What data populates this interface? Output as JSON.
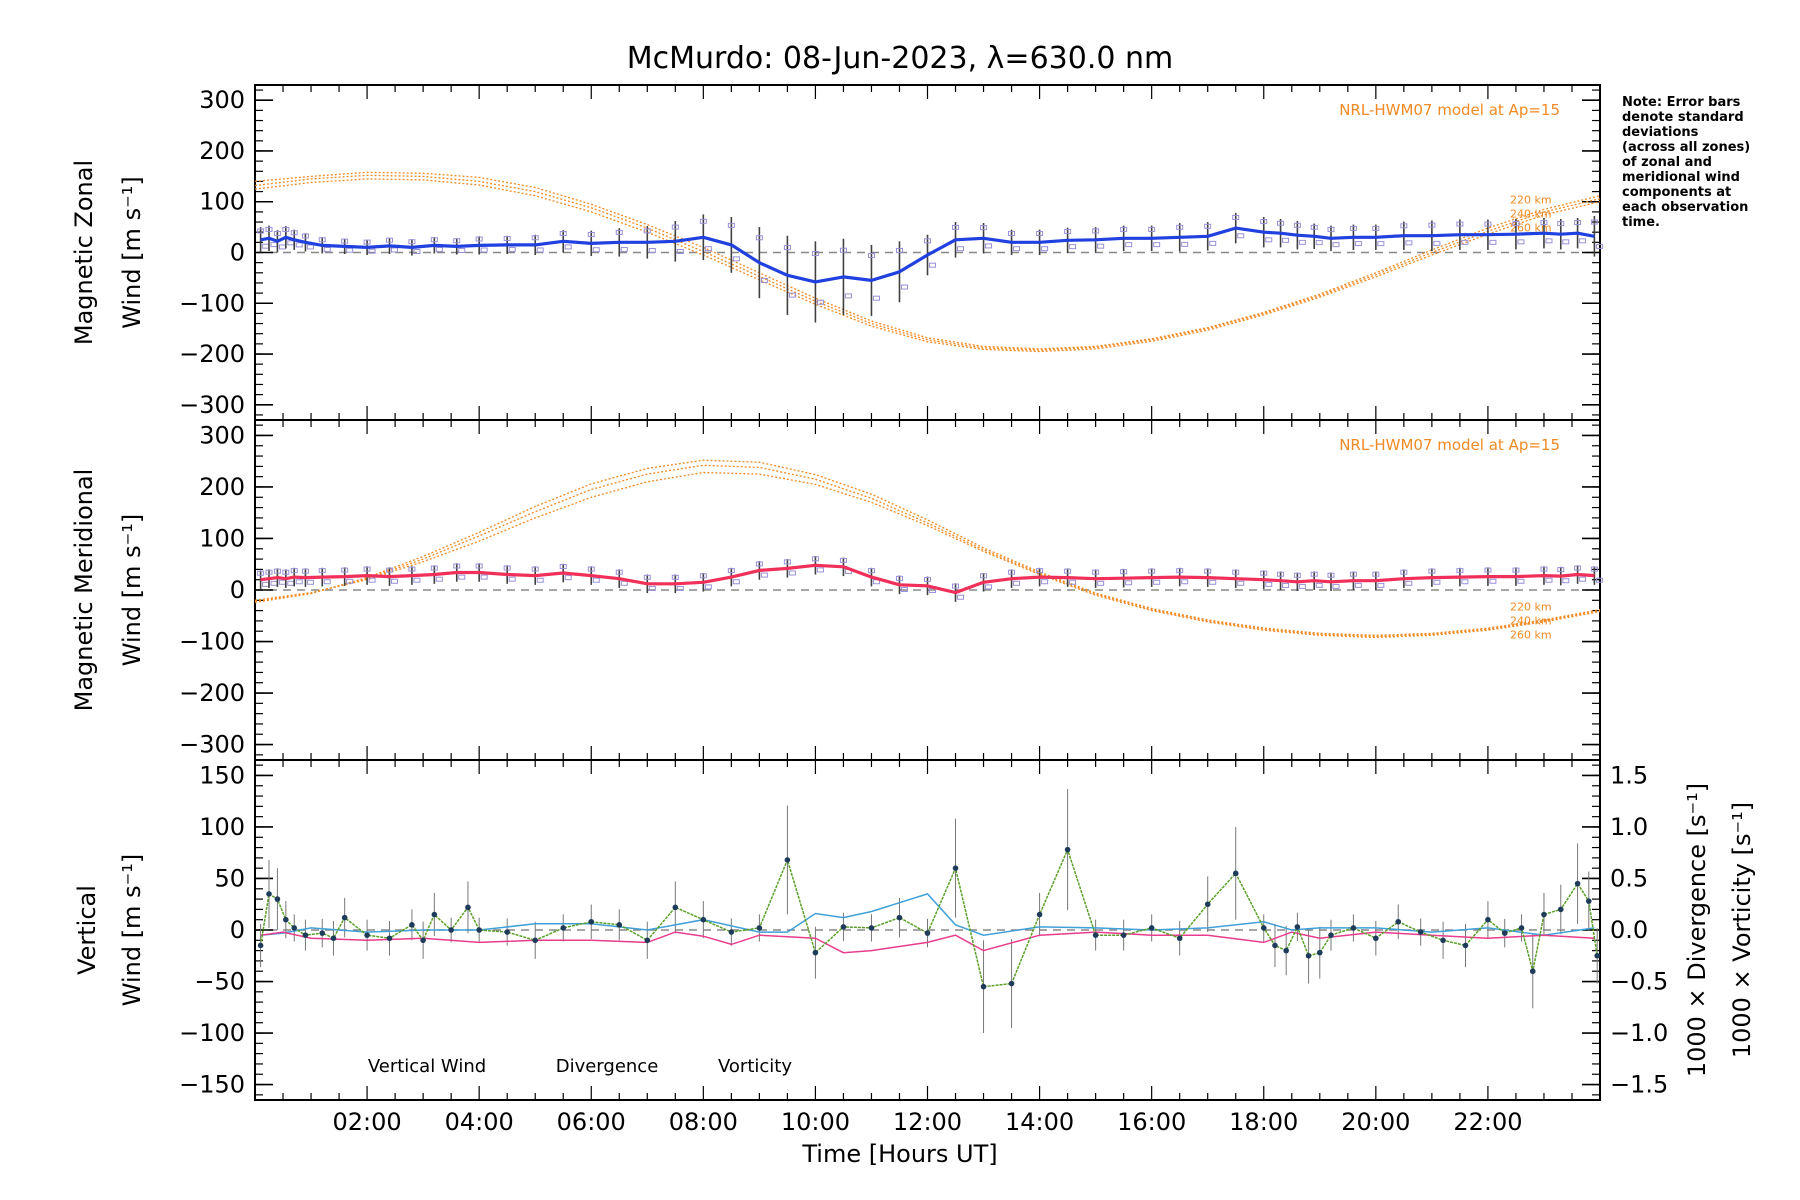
{
  "title": "McMurdo: 08-Jun-2023, λ=630.0 nm",
  "note_lines": [
    "Note: Error bars",
    "denote standard",
    "deviations",
    "(across all zones)",
    "of zonal and",
    "meridional wind",
    "components at",
    "each observation",
    "time."
  ],
  "colors": {
    "zonal": "#2040e0",
    "meridional": "#f0305a",
    "vertical": "#5aa028",
    "divergence": "#40a0d8",
    "vorticity": "#e83c8c",
    "model": "#f08a24",
    "errorbar": "#404040",
    "scatter": "#9890d8",
    "axis": "#000000"
  },
  "x_axis": {
    "label": "Time [Hours UT]",
    "range": [
      0,
      24
    ],
    "ticks": [
      2,
      4,
      6,
      8,
      10,
      12,
      14,
      16,
      18,
      20,
      22
    ],
    "tick_labels": [
      "02:00",
      "04:00",
      "06:00",
      "08:00",
      "10:00",
      "12:00",
      "14:00",
      "16:00",
      "18:00",
      "20:00",
      "22:00"
    ]
  },
  "chart_data": [
    {
      "type": "line",
      "panel": "zonal",
      "ylabel_line1": "Magnetic Zonal",
      "ylabel_line2": "Wind [m s⁻¹]",
      "ylim": [
        -330,
        330
      ],
      "yticks": [
        -300,
        -200,
        -100,
        0,
        100,
        200,
        300
      ],
      "ytick_labels": [
        "−300",
        "−200",
        "−100",
        "0",
        "100",
        "200",
        "300"
      ],
      "model_label": "NRL-HWM07 model at Ap=15",
      "model_altitudes": [
        "220 km",
        "240 km",
        "260 km"
      ],
      "series": [
        {
          "name": "Zonal wind",
          "x": [
            0.1,
            0.25,
            0.4,
            0.55,
            0.7,
            0.9,
            1.2,
            1.6,
            2.0,
            2.4,
            2.8,
            3.2,
            3.6,
            4.0,
            4.5,
            5.0,
            5.5,
            6.0,
            6.5,
            7.0,
            7.5,
            8.0,
            8.5,
            9.0,
            9.5,
            10.0,
            10.5,
            11.0,
            11.5,
            12.0,
            12.5,
            13.0,
            13.5,
            14.0,
            14.5,
            15.0,
            15.5,
            16.0,
            16.5,
            17.0,
            17.5,
            18.0,
            18.3,
            18.6,
            18.9,
            19.2,
            19.6,
            20.0,
            20.5,
            21.0,
            21.5,
            22.0,
            22.5,
            23.0,
            23.3,
            23.6,
            23.9
          ],
          "values": [
            25,
            28,
            22,
            30,
            25,
            20,
            14,
            12,
            10,
            13,
            10,
            14,
            12,
            14,
            15,
            15,
            22,
            18,
            20,
            20,
            22,
            30,
            15,
            -20,
            -45,
            -58,
            -48,
            -55,
            -38,
            -5,
            25,
            28,
            20,
            20,
            24,
            25,
            28,
            28,
            30,
            32,
            48,
            40,
            38,
            34,
            32,
            28,
            30,
            30,
            33,
            33,
            35,
            35,
            36,
            38,
            36,
            38,
            32
          ],
          "errors": [
            25,
            25,
            22,
            22,
            20,
            18,
            16,
            15,
            15,
            16,
            16,
            16,
            16,
            18,
            18,
            20,
            22,
            25,
            28,
            32,
            40,
            45,
            55,
            70,
            78,
            80,
            75,
            70,
            60,
            40,
            35,
            30,
            25,
            25,
            25,
            25,
            25,
            25,
            28,
            28,
            30,
            30,
            28,
            28,
            25,
            25,
            25,
            25,
            28,
            30,
            30,
            30,
            30,
            30,
            30,
            30,
            40
          ]
        },
        {
          "name": "NRL-HWM07 220 km",
          "x": [
            0,
            1,
            2,
            3,
            4,
            5,
            6,
            7,
            8,
            9,
            10,
            11,
            12,
            13,
            14,
            15,
            16,
            17,
            18,
            19,
            20,
            21,
            22,
            23,
            24
          ],
          "values": [
            140,
            150,
            158,
            156,
            148,
            128,
            95,
            55,
            10,
            -40,
            -90,
            -135,
            -168,
            -185,
            -190,
            -185,
            -170,
            -148,
            -118,
            -82,
            -40,
            5,
            48,
            85,
            112
          ]
        },
        {
          "name": "NRL-HWM07 240 km",
          "x": [
            0,
            1,
            2,
            3,
            4,
            5,
            6,
            7,
            8,
            9,
            10,
            11,
            12,
            13,
            14,
            15,
            16,
            17,
            18,
            19,
            20,
            21,
            22,
            23,
            24
          ],
          "values": [
            132,
            145,
            152,
            150,
            140,
            120,
            88,
            48,
            2,
            -47,
            -96,
            -140,
            -172,
            -188,
            -192,
            -187,
            -172,
            -150,
            -120,
            -85,
            -44,
            0,
            42,
            80,
            106
          ]
        },
        {
          "name": "NRL-HWM07 260 km",
          "x": [
            0,
            1,
            2,
            3,
            4,
            5,
            6,
            7,
            8,
            9,
            10,
            11,
            12,
            13,
            14,
            15,
            16,
            17,
            18,
            19,
            20,
            21,
            22,
            23,
            24
          ],
          "values": [
            125,
            138,
            145,
            143,
            133,
            112,
            80,
            40,
            -5,
            -54,
            -102,
            -145,
            -176,
            -191,
            -195,
            -190,
            -175,
            -153,
            -123,
            -88,
            -48,
            -5,
            36,
            74,
            100
          ]
        }
      ]
    },
    {
      "type": "line",
      "panel": "meridional",
      "ylabel_line1": "Magnetic Meridional",
      "ylabel_line2": "Wind [m s⁻¹]",
      "ylim": [
        -330,
        330
      ],
      "yticks": [
        -300,
        -200,
        -100,
        0,
        100,
        200,
        300
      ],
      "ytick_labels": [
        "−300",
        "−200",
        "−100",
        "0",
        "100",
        "200",
        "300"
      ],
      "model_label": "NRL-HWM07 model at Ap=15",
      "model_altitudes": [
        "220 km",
        "240 km",
        "260 km"
      ],
      "series": [
        {
          "name": "Meridional wind",
          "x": [
            0.1,
            0.25,
            0.4,
            0.55,
            0.7,
            0.9,
            1.2,
            1.6,
            2.0,
            2.4,
            2.8,
            3.2,
            3.6,
            4.0,
            4.5,
            5.0,
            5.5,
            6.0,
            6.5,
            7.0,
            7.5,
            8.0,
            8.5,
            9.0,
            9.5,
            10.0,
            10.5,
            11.0,
            11.5,
            12.0,
            12.5,
            13.0,
            13.5,
            14.0,
            14.5,
            15.0,
            15.5,
            16.0,
            16.5,
            17.0,
            17.5,
            18.0,
            18.3,
            18.6,
            18.9,
            19.2,
            19.6,
            20.0,
            20.5,
            21.0,
            21.5,
            22.0,
            22.5,
            23.0,
            23.3,
            23.6,
            23.9
          ],
          "values": [
            20,
            22,
            24,
            22,
            25,
            24,
            25,
            26,
            28,
            26,
            28,
            30,
            34,
            34,
            30,
            28,
            33,
            28,
            22,
            12,
            12,
            15,
            25,
            38,
            42,
            48,
            45,
            25,
            10,
            8,
            -5,
            15,
            22,
            25,
            24,
            22,
            23,
            24,
            25,
            24,
            22,
            20,
            18,
            16,
            18,
            16,
            18,
            18,
            22,
            24,
            25,
            26,
            26,
            28,
            27,
            30,
            28
          ]
        },
        {
          "name": "NRL-HWM07 220 km",
          "x": [
            0,
            1,
            2,
            3,
            4,
            5,
            6,
            7,
            8,
            9,
            10,
            11,
            12,
            13,
            14,
            15,
            16,
            17,
            18,
            19,
            20,
            21,
            22,
            23,
            24
          ],
          "values": [
            -20,
            -5,
            20,
            55,
            95,
            140,
            180,
            210,
            228,
            225,
            205,
            170,
            125,
            75,
            30,
            -10,
            -40,
            -62,
            -78,
            -88,
            -92,
            -88,
            -78,
            -62,
            -42
          ]
        },
        {
          "name": "NRL-HWM07 240 km",
          "x": [
            0,
            1,
            2,
            3,
            4,
            5,
            6,
            7,
            8,
            9,
            10,
            11,
            12,
            13,
            14,
            15,
            16,
            17,
            18,
            19,
            20,
            21,
            22,
            23,
            24
          ],
          "values": [
            -22,
            -6,
            22,
            60,
            105,
            152,
            195,
            225,
            242,
            238,
            215,
            178,
            130,
            78,
            32,
            -8,
            -38,
            -60,
            -76,
            -86,
            -90,
            -86,
            -76,
            -60,
            -40
          ]
        },
        {
          "name": "NRL-HWM07 260 km",
          "x": [
            0,
            1,
            2,
            3,
            4,
            5,
            6,
            7,
            8,
            9,
            10,
            11,
            12,
            13,
            14,
            15,
            16,
            17,
            18,
            19,
            20,
            21,
            22,
            23,
            24
          ],
          "values": [
            -24,
            -7,
            24,
            65,
            112,
            162,
            206,
            236,
            252,
            248,
            224,
            186,
            136,
            82,
            35,
            -6,
            -36,
            -58,
            -74,
            -84,
            -88,
            -84,
            -74,
            -58,
            -38
          ]
        }
      ]
    },
    {
      "type": "line",
      "panel": "vertical",
      "ylabel_line1": "Vertical",
      "ylabel_line2": "Wind [m s⁻¹]",
      "ylim": [
        -165,
        165
      ],
      "yticks": [
        -150,
        -100,
        -50,
        0,
        50,
        100,
        150
      ],
      "ytick_labels": [
        "−150",
        "−100",
        "−50",
        "0",
        "50",
        "100",
        "150"
      ],
      "y2lim": [
        -1.65,
        1.65
      ],
      "y2ticks": [
        -1.5,
        -1.0,
        -0.5,
        0.0,
        0.5,
        1.0,
        1.5
      ],
      "y2tick_labels": [
        "−1.5",
        "−1.0",
        "−0.5",
        "0.0",
        "0.5",
        "1.0",
        "1.5"
      ],
      "y2label_div": "1000 × Divergence [s⁻¹]",
      "y2label_vort": "1000 × Vorticity [s⁻¹]",
      "legend": [
        "Vertical Wind",
        "Divergence",
        "Vorticity"
      ],
      "series": [
        {
          "name": "Vertical Wind",
          "x": [
            0.1,
            0.25,
            0.4,
            0.55,
            0.7,
            0.9,
            1.2,
            1.4,
            1.6,
            2.0,
            2.4,
            2.8,
            3.0,
            3.2,
            3.5,
            3.8,
            4.0,
            4.5,
            5.0,
            5.5,
            6.0,
            6.5,
            7.0,
            7.5,
            8.0,
            8.5,
            9.0,
            9.5,
            10.0,
            10.5,
            11.0,
            11.5,
            12.0,
            12.5,
            13.0,
            13.5,
            14.0,
            14.5,
            15.0,
            15.5,
            16.0,
            16.5,
            17.0,
            17.5,
            18.0,
            18.2,
            18.4,
            18.6,
            18.8,
            19.0,
            19.2,
            19.6,
            20.0,
            20.4,
            20.8,
            21.2,
            21.6,
            22.0,
            22.3,
            22.6,
            22.8,
            23.0,
            23.3,
            23.6,
            23.8,
            23.95
          ],
          "values": [
            -15,
            35,
            30,
            10,
            2,
            -5,
            -3,
            -8,
            12,
            -5,
            -8,
            5,
            -10,
            15,
            0,
            22,
            0,
            -2,
            -10,
            2,
            8,
            5,
            -10,
            22,
            10,
            -2,
            2,
            68,
            -22,
            3,
            2,
            12,
            -3,
            60,
            -55,
            -52,
            15,
            78,
            -5,
            -5,
            2,
            -8,
            25,
            55,
            2,
            -15,
            -20,
            3,
            -25,
            -22,
            -5,
            2,
            -8,
            8,
            -2,
            -10,
            -15,
            10,
            -3,
            2,
            -40,
            15,
            20,
            45,
            28,
            -25
          ]
        },
        {
          "name": "Divergence",
          "x": [
            0.1,
            0.5,
            1.0,
            2.0,
            3.0,
            4.0,
            5.0,
            6.0,
            7.0,
            8.0,
            9.0,
            9.5,
            10.0,
            10.5,
            11.0,
            12.0,
            12.5,
            13.0,
            14.0,
            15.0,
            16.0,
            17.0,
            18.0,
            18.5,
            19.0,
            20.0,
            21.0,
            22.0,
            23.0,
            23.9
          ],
          "values": [
            -0.05,
            -0.03,
            0.02,
            -0.02,
            0.0,
            0.0,
            0.06,
            0.06,
            0.0,
            0.1,
            -0.02,
            -0.02,
            0.16,
            0.12,
            0.18,
            0.35,
            0.05,
            -0.05,
            0.03,
            0.02,
            0.0,
            0.02,
            0.08,
            0.0,
            0.02,
            0.02,
            -0.02,
            0.02,
            -0.05,
            0.02
          ]
        },
        {
          "name": "Vorticity",
          "x": [
            0.1,
            0.5,
            1.0,
            2.0,
            3.0,
            4.0,
            5.0,
            6.0,
            7.0,
            7.5,
            8.0,
            8.5,
            9.0,
            10.0,
            10.5,
            11.0,
            12.0,
            12.5,
            13.0,
            14.0,
            15.0,
            16.0,
            17.0,
            18.0,
            18.5,
            19.0,
            20.0,
            21.0,
            22.0,
            23.0,
            23.9
          ],
          "values": [
            -0.05,
            -0.02,
            -0.08,
            -0.1,
            -0.08,
            -0.12,
            -0.1,
            -0.1,
            -0.12,
            -0.02,
            -0.06,
            -0.14,
            -0.05,
            -0.08,
            -0.22,
            -0.2,
            -0.12,
            -0.05,
            -0.2,
            -0.05,
            -0.02,
            -0.05,
            -0.05,
            -0.12,
            -0.02,
            -0.08,
            -0.02,
            -0.05,
            -0.08,
            -0.05,
            -0.08
          ]
        }
      ]
    }
  ]
}
